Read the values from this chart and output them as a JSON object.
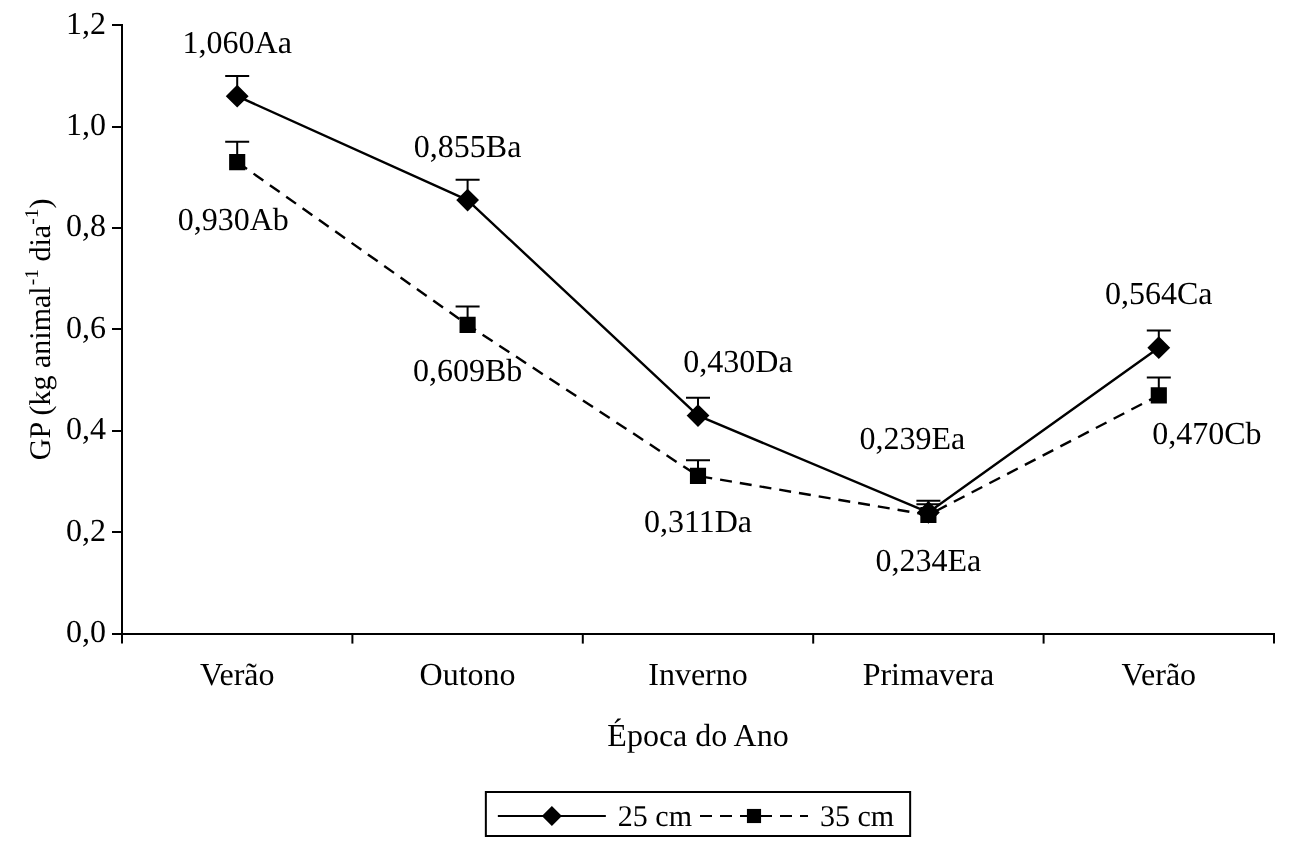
{
  "chart_data": {
    "type": "line",
    "xlabel": "Época do Ano",
    "ylabel": "GP (kg animal$^{-1}$ dia$^{-1}$)",
    "categories": [
      "Verão",
      "Outono",
      "Inverno",
      "Primavera",
      "Verão"
    ],
    "ylim": [
      0,
      1.2
    ],
    "yticks": [
      {
        "value": 0,
        "label": "0,0"
      },
      {
        "value": 0.2,
        "label": "0,2"
      },
      {
        "value": 0.4,
        "label": "0,4"
      },
      {
        "value": 0.6,
        "label": "0,6"
      },
      {
        "value": 0.8,
        "label": "0,8"
      },
      {
        "value": 1,
        "label": "1,0"
      },
      {
        "value": 1.2,
        "label": "1,2"
      }
    ],
    "grid": false,
    "legend": "bottom",
    "series": [
      {
        "name": "25 cm",
        "color": "#000000",
        "marker": "diamond",
        "line_style": "solid",
        "values": [
          1.06,
          0.855,
          0.43,
          0.239,
          0.564
        ],
        "errors": [
          [
            1.06,
            1.1
          ],
          [
            0.855,
            0.895
          ],
          [
            0.43,
            0.465
          ],
          [
            0.239,
            0.262
          ],
          [
            0.564,
            0.598
          ]
        ],
        "value_labels": [
          "1,060Aa",
          "0,855Ba",
          "0,430Da",
          "0,239Ea",
          "0,564Ca"
        ]
      },
      {
        "name": "35 cm",
        "color": "#000000",
        "marker": "square",
        "line_style": "dashed",
        "values": [
          0.93,
          0.609,
          0.311,
          0.234,
          0.47
        ],
        "errors": [
          [
            0.93,
            0.97
          ],
          [
            0.609,
            0.645
          ],
          [
            0.311,
            0.342
          ],
          [
            0.234,
            0.255
          ],
          [
            0.47,
            0.505
          ]
        ],
        "value_labels": [
          "0,930Ab",
          "0,609Bb",
          "0,311Da",
          "0,234Ea",
          "0,470Cb"
        ]
      }
    ]
  }
}
